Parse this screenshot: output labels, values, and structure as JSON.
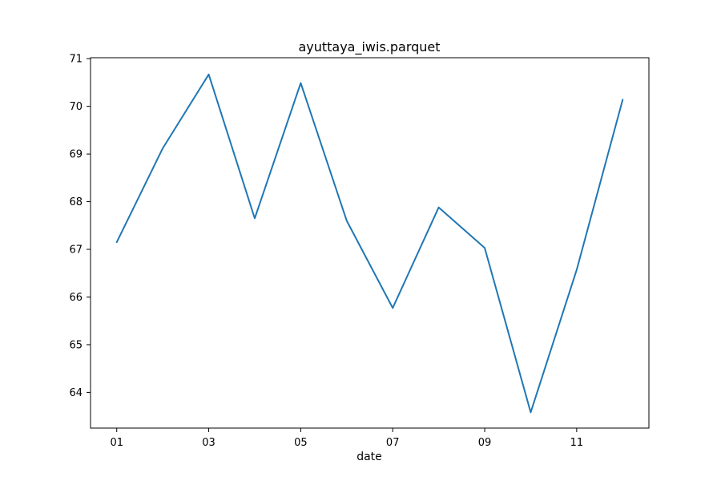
{
  "chart_data": {
    "type": "line",
    "title": "ayuttaya_iwis.parquet",
    "xlabel": "date",
    "ylabel": "",
    "x": [
      1,
      2,
      3,
      4,
      5,
      6,
      7,
      8,
      9,
      10,
      11,
      12
    ],
    "xlim": [
      0.43,
      12.57
    ],
    "ylim": [
      63.25,
      71.02
    ],
    "x_ticks": [
      1,
      3,
      5,
      7,
      9,
      11
    ],
    "x_tick_labels": [
      "01",
      "03",
      "05",
      "07",
      "09",
      "11"
    ],
    "y_ticks": [
      64,
      65,
      66,
      67,
      68,
      69,
      70,
      71
    ],
    "y_tick_labels": [
      "64",
      "65",
      "66",
      "67",
      "68",
      "69",
      "70",
      "71"
    ],
    "grid": false,
    "legend": "none",
    "series": [
      {
        "color": "#1f77b4",
        "values": [
          67.15,
          69.12,
          70.67,
          67.65,
          70.49,
          67.6,
          65.77,
          67.88,
          67.03,
          63.58,
          66.57,
          70.14
        ]
      }
    ]
  }
}
